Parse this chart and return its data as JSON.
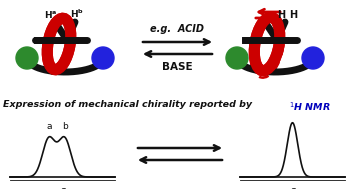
{
  "bg_color": "#ffffff",
  "red_color": "#cc0000",
  "green_color": "#2d8a2d",
  "blue_color": "#2222dd",
  "black_color": "#111111",
  "blue_text_color": "#0000bb",
  "caption_main": "Expression of mechanical chirality reported by ",
  "caption_super": "$^{1}$H NMR",
  "acid_label": "e.g.  ACID",
  "base_label": "BASE",
  "peak_a": "a",
  "peak_b": "b",
  "delta": "$\\delta$",
  "fig_w": 3.5,
  "fig_h": 1.89,
  "dpi": 100
}
